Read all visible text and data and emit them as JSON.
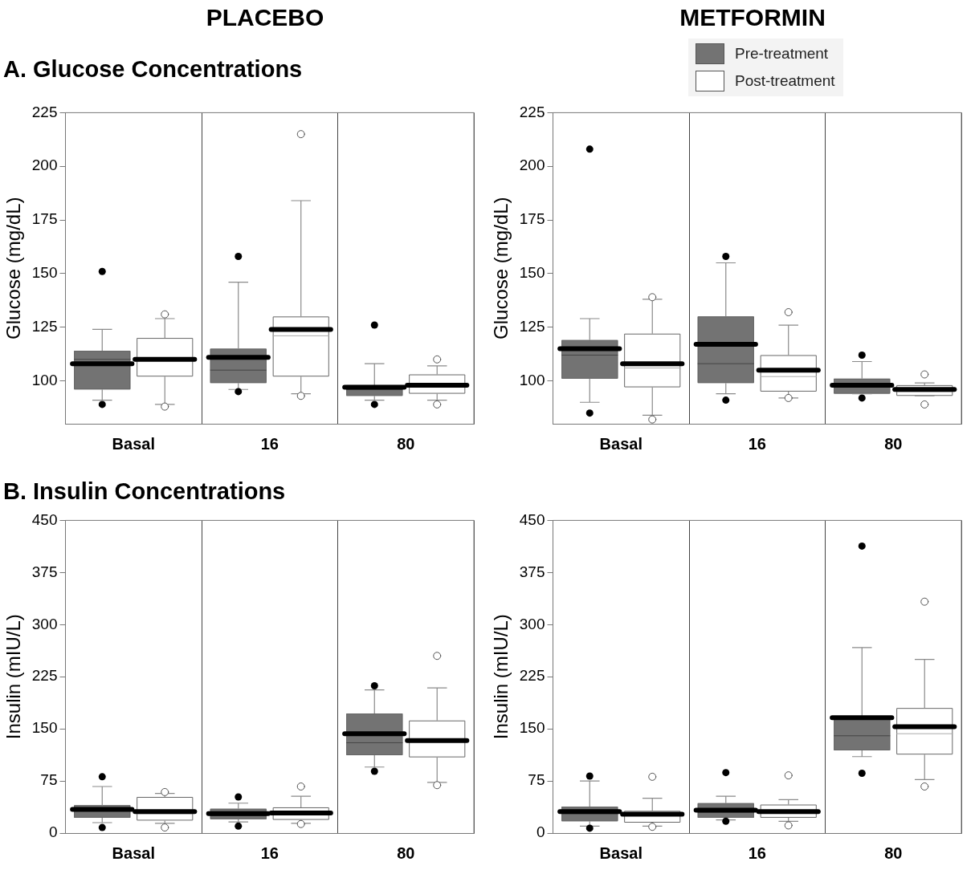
{
  "chart_data": [
    {
      "type": "box",
      "title": "PLACEBO",
      "subtitle": "A. Glucose Concentrations",
      "ylabel": "Glucose (mg/dL)",
      "categories": [
        "Basal",
        "16",
        "80"
      ],
      "ylim": [
        80,
        225
      ],
      "yticks": [
        100,
        125,
        150,
        175,
        200,
        225
      ],
      "grid": "x",
      "legend": false,
      "series": [
        {
          "color": "#737373",
          "boxes": [
            {
              "low": 91,
              "q1": 96,
              "median": 110,
              "q3": 114,
              "high": 124,
              "mean": 108,
              "outliers": [
                89,
                151
              ]
            },
            {
              "low": 96,
              "q1": 99,
              "median": 105,
              "q3": 115,
              "high": 146,
              "mean": 111,
              "outliers": [
                95,
                158
              ]
            },
            {
              "low": 91,
              "q1": 93,
              "median": 96,
              "q3": 98,
              "high": 108,
              "mean": 97,
              "outliers": [
                89,
                126
              ]
            }
          ]
        },
        {
          "color": "#ffffff",
          "boxes": [
            {
              "low": 89,
              "q1": 102,
              "median": 110,
              "q3": 120,
              "high": 129,
              "mean": 110,
              "outliers": [
                88,
                131
              ]
            },
            {
              "low": 94,
              "q1": 102,
              "median": 121,
              "q3": 130,
              "high": 184,
              "mean": 124,
              "outliers": [
                93,
                215
              ]
            },
            {
              "low": 91,
              "q1": 94,
              "median": 97,
              "q3": 103,
              "high": 107,
              "mean": 98,
              "outliers": [
                89,
                110
              ]
            }
          ]
        }
      ]
    },
    {
      "type": "box",
      "title": "METFORMIN",
      "ylabel": "Glucose (mg/dL)",
      "categories": [
        "Basal",
        "16",
        "80"
      ],
      "ylim": [
        80,
        225
      ],
      "yticks": [
        100,
        125,
        150,
        175,
        200,
        225
      ],
      "grid": "x",
      "legend": "top right",
      "series": [
        {
          "name": "Pre-treatment",
          "color": "#737373",
          "boxes": [
            {
              "low": 90,
              "q1": 101,
              "median": 112,
              "q3": 119,
              "high": 129,
              "mean": 115,
              "outliers": [
                85,
                208
              ]
            },
            {
              "low": 94,
              "q1": 99,
              "median": 108,
              "q3": 130,
              "high": 155,
              "mean": 117,
              "outliers": [
                91,
                158
              ]
            },
            {
              "low": 94,
              "q1": 94,
              "median": 98,
              "q3": 101,
              "high": 109,
              "mean": 98,
              "outliers": [
                92,
                112
              ]
            }
          ]
        },
        {
          "name": "Post-treatment",
          "color": "#ffffff",
          "boxes": [
            {
              "low": 84,
              "q1": 97,
              "median": 106,
              "q3": 122,
              "high": 138,
              "mean": 108,
              "outliers": [
                82,
                139
              ]
            },
            {
              "low": 92,
              "q1": 95,
              "median": 102,
              "q3": 112,
              "high": 126,
              "mean": 105,
              "outliers": [
                92,
                132
              ]
            },
            {
              "low": 93,
              "q1": 93,
              "median": 95,
              "q3": 98,
              "high": 99,
              "mean": 96,
              "outliers": [
                89,
                103
              ]
            }
          ]
        }
      ]
    },
    {
      "type": "box",
      "subtitle": "B. Insulin Concentrations",
      "ylabel": "Insulin (mIU/L)",
      "categories": [
        "Basal",
        "16",
        "80"
      ],
      "ylim": [
        0,
        450
      ],
      "yticks": [
        0,
        75,
        150,
        225,
        300,
        375,
        450
      ],
      "grid": "x",
      "legend": false,
      "series": [
        {
          "color": "#737373",
          "boxes": [
            {
              "low": 15,
              "q1": 22,
              "median": 33,
              "q3": 40,
              "high": 67,
              "mean": 34,
              "outliers": [
                8,
                81
              ]
            },
            {
              "low": 16,
              "q1": 20,
              "median": 25,
              "q3": 35,
              "high": 43,
              "mean": 28,
              "outliers": [
                10,
                52
              ]
            },
            {
              "low": 95,
              "q1": 112,
              "median": 130,
              "q3": 172,
              "high": 206,
              "mean": 143,
              "outliers": [
                89,
                212
              ]
            }
          ]
        },
        {
          "color": "#ffffff",
          "boxes": [
            {
              "low": 14,
              "q1": 18,
              "median": 28,
              "q3": 52,
              "high": 57,
              "mean": 31,
              "outliers": [
                8,
                59
              ]
            },
            {
              "low": 14,
              "q1": 19,
              "median": 30,
              "q3": 37,
              "high": 53,
              "mean": 29,
              "outliers": [
                13,
                67
              ]
            },
            {
              "low": 73,
              "q1": 109,
              "median": 135,
              "q3": 162,
              "high": 209,
              "mean": 133,
              "outliers": [
                69,
                255
              ]
            }
          ]
        }
      ]
    },
    {
      "type": "box",
      "ylabel": "Insulin (mIU/L)",
      "categories": [
        "Basal",
        "16",
        "80"
      ],
      "ylim": [
        0,
        450
      ],
      "yticks": [
        0,
        75,
        150,
        225,
        300,
        375,
        450
      ],
      "grid": "x",
      "legend": false,
      "series": [
        {
          "color": "#737373",
          "boxes": [
            {
              "low": 10,
              "q1": 17,
              "median": 28,
              "q3": 38,
              "high": 75,
              "mean": 31,
              "outliers": [
                7,
                82
              ]
            },
            {
              "low": 19,
              "q1": 22,
              "median": 30,
              "q3": 43,
              "high": 53,
              "mean": 33,
              "outliers": [
                17,
                87
              ]
            },
            {
              "low": 110,
              "q1": 119,
              "median": 140,
              "q3": 166,
              "high": 267,
              "mean": 166,
              "outliers": [
                86,
                413
              ]
            }
          ]
        },
        {
          "color": "#ffffff",
          "boxes": [
            {
              "low": 10,
              "q1": 15,
              "median": 25,
              "q3": 32,
              "high": 50,
              "mean": 27,
              "outliers": [
                9,
                81
              ]
            },
            {
              "low": 17,
              "q1": 22,
              "median": 30,
              "q3": 41,
              "high": 48,
              "mean": 31,
              "outliers": [
                11,
                83
              ]
            },
            {
              "low": 77,
              "q1": 113,
              "median": 143,
              "q3": 180,
              "high": 250,
              "mean": 153,
              "outliers": [
                67,
                333
              ]
            }
          ]
        }
      ]
    }
  ]
}
